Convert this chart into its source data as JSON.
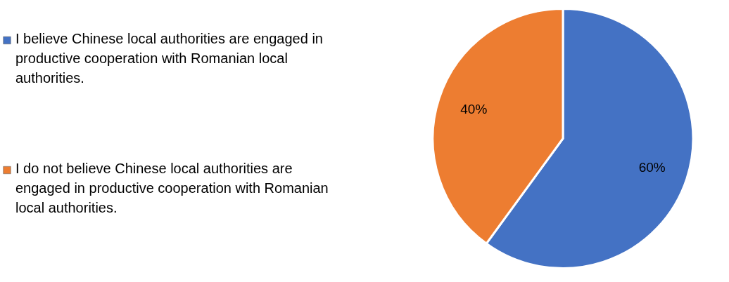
{
  "chart_data": {
    "type": "pie",
    "categories": [
      "I believe Chinese local authorities are engaged in productive cooperation with Romanian local authorities.",
      "I do not believe Chinese local authorities are engaged in productive cooperation with Romanian local authorities."
    ],
    "values": [
      60,
      40
    ],
    "colors": [
      "#4472c4",
      "#ed7d31"
    ],
    "value_labels": [
      "60%",
      "40%"
    ],
    "legend": "left"
  }
}
